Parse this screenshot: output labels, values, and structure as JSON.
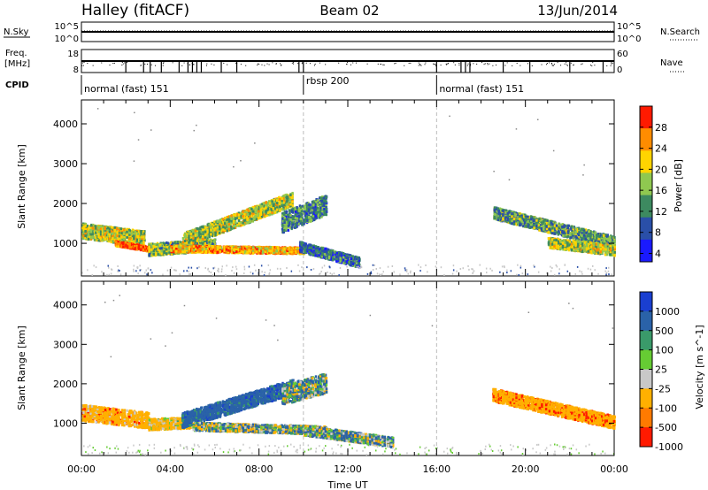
{
  "header": {
    "title": "Halley (fitACF)",
    "beam": "Beam 02",
    "date": "13/Jun/2014"
  },
  "nsky": {
    "label": "N.Sky",
    "right_label": "N.Search",
    "ticks_left": [
      "10^5",
      "10^0"
    ],
    "ticks_right": [
      "10^5",
      "10^0"
    ]
  },
  "freq": {
    "label_line1": "Freq.",
    "label_line2": "[MHz]",
    "right_label": "Nave",
    "ticks_left": [
      "18",
      "8"
    ],
    "ticks_right": [
      "60",
      "0"
    ]
  },
  "cpid": {
    "label": "CPID",
    "segments": [
      {
        "start": 0,
        "name": "normal (fast) 151"
      },
      {
        "start": 10,
        "name": "rbsp 200"
      },
      {
        "start": 16,
        "name": "normal (fast) 151"
      }
    ]
  },
  "x_axis": {
    "label": "Time UT",
    "ticks": [
      "00:00",
      "04:00",
      "08:00",
      "12:00",
      "16:00",
      "20:00",
      "00:00"
    ],
    "range_hours": [
      0,
      24
    ]
  },
  "chart_data": [
    {
      "type": "heatmap",
      "panel": "power",
      "ylabel": "Slant Range [km]",
      "ylim": [
        180,
        4600
      ],
      "yticks": [
        1000,
        2000,
        3000,
        4000
      ],
      "colorbar_label": "Power [dB]",
      "colorbar_ticks": [
        "28",
        "24",
        "20",
        "16",
        "12",
        "8",
        "4"
      ],
      "colors": [
        "#1a1aff",
        "#2a4fa8",
        "#3d8a60",
        "#8fc850",
        "#ffd400",
        "#ff8c00",
        "#ff1a00"
      ],
      "bands": [
        {
          "t0": 0.0,
          "t1": 2.8,
          "r_start": 1300,
          "r_end": 1100,
          "w": 380,
          "p": 16
        },
        {
          "t0": 1.5,
          "t1": 3.5,
          "r_start": 980,
          "r_end": 800,
          "w": 120,
          "p": 26
        },
        {
          "t0": 3.0,
          "t1": 6.0,
          "r_start": 820,
          "r_end": 950,
          "w": 300,
          "p": 14
        },
        {
          "t0": 4.0,
          "t1": 10.0,
          "r_start": 850,
          "r_end": 800,
          "w": 160,
          "p": 22
        },
        {
          "t0": 4.5,
          "t1": 9.5,
          "r_start": 1050,
          "r_end": 2100,
          "w": 350,
          "p": 16
        },
        {
          "t0": 9.0,
          "t1": 11.0,
          "r_start": 1500,
          "r_end": 1950,
          "w": 500,
          "p": 10
        },
        {
          "t0": 9.8,
          "t1": 12.5,
          "r_start": 900,
          "r_end": 500,
          "w": 250,
          "p": 8
        },
        {
          "t0": 18.5,
          "t1": 24.0,
          "r_start": 1750,
          "r_end": 1000,
          "w": 300,
          "p": 12
        },
        {
          "t0": 21.0,
          "t1": 24.0,
          "r_start": 1000,
          "r_end": 800,
          "w": 250,
          "p": 16
        }
      ]
    },
    {
      "type": "heatmap",
      "panel": "velocity",
      "ylabel": "Slant Range [km]",
      "ylim": [
        180,
        4600
      ],
      "yticks": [
        1000,
        2000,
        3000,
        4000
      ],
      "colorbar_label": "Velocity [m s^-1]",
      "colorbar_ticks": [
        "1000",
        "500",
        "100",
        "25",
        "-25",
        "-100",
        "-500",
        "-1000"
      ],
      "colors": [
        "#1a3fd0",
        "#2a62a8",
        "#3a9a6a",
        "#66cc33",
        "#c8c8c8",
        "#ffb000",
        "#ff7a00",
        "#ff1a00"
      ],
      "bands": [
        {
          "t0": 0.0,
          "t1": 3.0,
          "r_start": 1250,
          "r_end": 1050,
          "w": 400,
          "v": -300
        },
        {
          "t0": 3.0,
          "t1": 5.0,
          "r_start": 950,
          "r_end": 1000,
          "w": 280,
          "v": -200
        },
        {
          "t0": 4.5,
          "t1": 9.5,
          "r_start": 1050,
          "r_end": 1900,
          "w": 380,
          "v": 300
        },
        {
          "t0": 5.0,
          "t1": 11.0,
          "r_start": 900,
          "r_end": 800,
          "w": 200,
          "v": 0
        },
        {
          "t0": 9.0,
          "t1": 11.0,
          "r_start": 1700,
          "r_end": 2000,
          "w": 500,
          "v": 60
        },
        {
          "t0": 10.0,
          "t1": 14.0,
          "r_start": 800,
          "r_end": 500,
          "w": 250,
          "v": 60
        },
        {
          "t0": 18.5,
          "t1": 24.0,
          "r_start": 1700,
          "r_end": 1000,
          "w": 320,
          "v": -350
        }
      ]
    }
  ]
}
